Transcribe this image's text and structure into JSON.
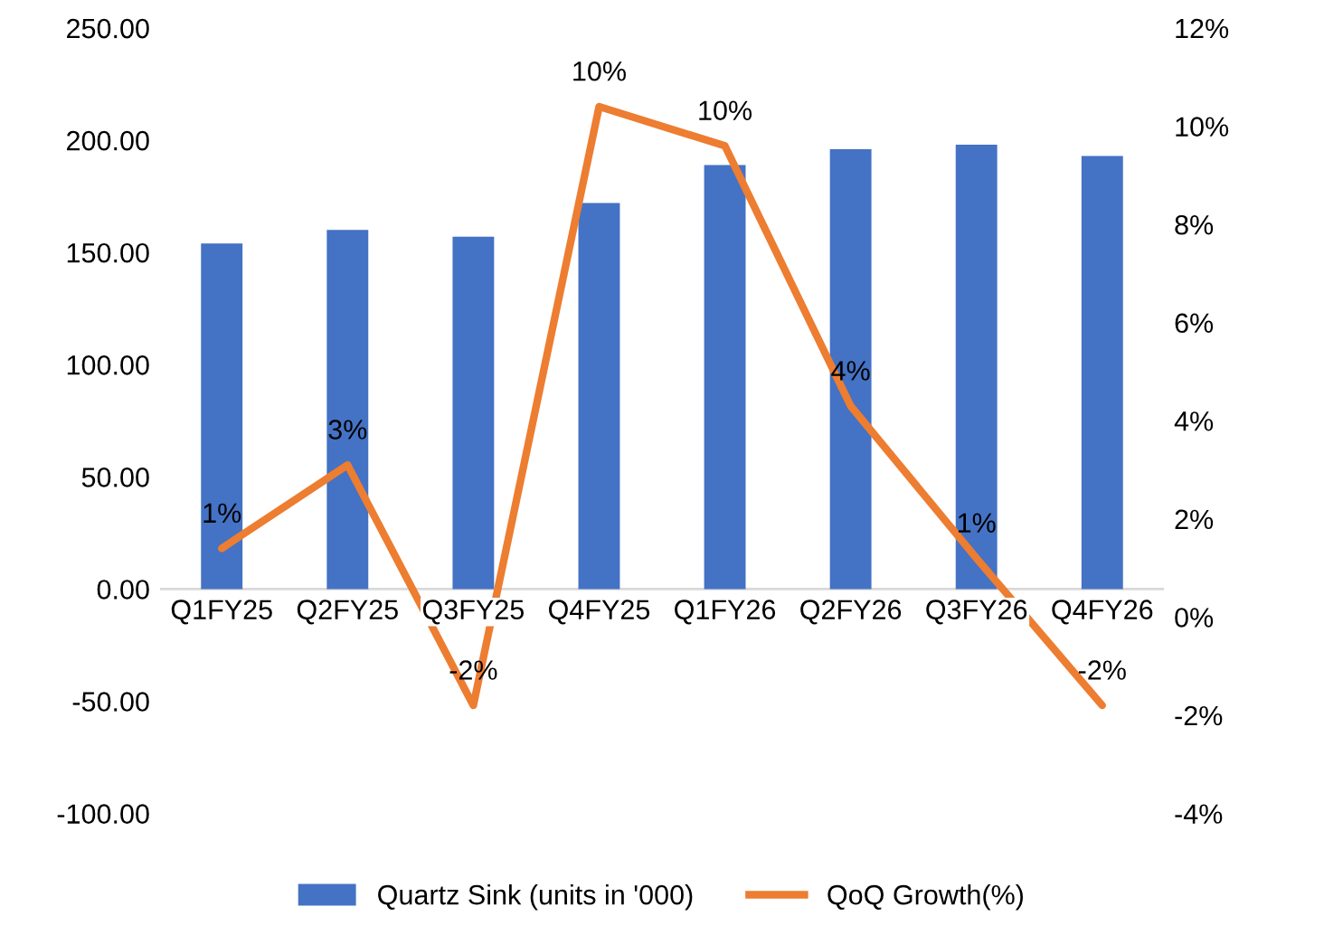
{
  "chart_data": {
    "type": "bar",
    "categories": [
      "Q1FY25",
      "Q2FY25",
      "Q3FY25",
      "Q4FY25",
      "Q1FY26",
      "Q2FY26",
      "Q3FY26",
      "Q4FY26"
    ],
    "series": [
      {
        "name": "Quartz Sink (units in '000)",
        "color": "#4472c4",
        "values": [
          154,
          160,
          157,
          172,
          189,
          196,
          198,
          193
        ]
      },
      {
        "name": "QoQ Growth(%)",
        "type": "line",
        "axis": "y2",
        "color": "#ed7d31",
        "values": [
          1.4,
          3.1,
          -1.8,
          10.4,
          9.6,
          4.3,
          1.2,
          -1.8
        ],
        "value_labels": [
          "1%",
          "3%",
          "-2%",
          "10%",
          "10%",
          "4%",
          "1%",
          "-2%"
        ]
      }
    ],
    "ylim": [
      -100,
      250
    ],
    "yticks": [
      {
        "value": -100,
        "label": "-100.00"
      },
      {
        "value": -50,
        "label": "-50.00"
      },
      {
        "value": 0,
        "label": "0.00"
      },
      {
        "value": 50,
        "label": "50.00"
      },
      {
        "value": 100,
        "label": "100.00"
      },
      {
        "value": 150,
        "label": "150.00"
      },
      {
        "value": 200,
        "label": "200.00"
      },
      {
        "value": 250,
        "label": "250.00"
      }
    ],
    "y2lim": [
      -4,
      12
    ],
    "y2ticks": [
      {
        "value": -4,
        "label": "-4%"
      },
      {
        "value": -2,
        "label": "-2%"
      },
      {
        "value": 0,
        "label": "0%"
      },
      {
        "value": 2,
        "label": "2%"
      },
      {
        "value": 4,
        "label": "4%"
      },
      {
        "value": 6,
        "label": "6%"
      },
      {
        "value": 8,
        "label": "8%"
      },
      {
        "value": 10,
        "label": "10%"
      },
      {
        "value": 12,
        "label": "12%"
      }
    ],
    "legend": "bottom",
    "grid": false
  }
}
